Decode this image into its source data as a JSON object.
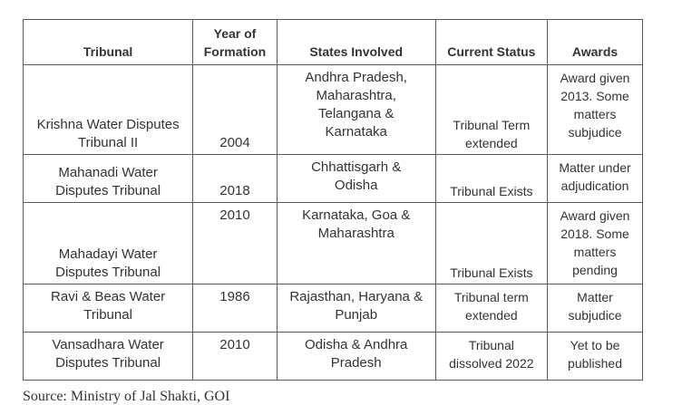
{
  "table": {
    "headers": [
      "Tribunal",
      "Year of Formation",
      "States Involved",
      "Current Status",
      "Awards"
    ],
    "header_lines": {
      "year": [
        "Year of",
        "Formation"
      ]
    },
    "rows": [
      {
        "tribunal": [
          "Krishna Water Disputes",
          "Tribunal II"
        ],
        "year": "2004",
        "states": [
          "Andhra Pradesh,",
          "Maharashtra,",
          "Telangana &",
          "Karnataka"
        ],
        "status": [
          "Tribunal Term",
          "extended"
        ],
        "awards": [
          "Award given",
          "2013. Some",
          "matters",
          "subjudice"
        ]
      },
      {
        "tribunal": [
          "Mahanadi Water",
          "Disputes Tribunal"
        ],
        "year": "2018",
        "states": [
          "Chhattisgarh &",
          "Odisha"
        ],
        "status": [
          "Tribunal Exists"
        ],
        "awards": [
          "Matter under",
          "adjudication"
        ]
      },
      {
        "tribunal": [
          "Mahadayi Water",
          "Disputes Tribunal"
        ],
        "year": "2010",
        "states": [
          "Karnataka, Goa &",
          "Maharashtra"
        ],
        "status": [
          "Tribunal Exists"
        ],
        "awards": [
          "Award given",
          "2018. Some",
          "matters",
          "pending"
        ]
      },
      {
        "tribunal": [
          "Ravi & Beas Water",
          "Tribunal"
        ],
        "year": "1986",
        "states": [
          "Rajasthan, Haryana &",
          "Punjab"
        ],
        "status": [
          "Tribunal term",
          "extended"
        ],
        "awards": [
          "Matter",
          "subjudice"
        ]
      },
      {
        "tribunal": [
          "Vansadhara Water",
          "Disputes Tribunal"
        ],
        "year": "2010",
        "states": [
          "Odisha & Andhra",
          "Pradesh"
        ],
        "status": [
          "Tribunal",
          "dissolved 2022"
        ],
        "awards": [
          "Yet to be",
          "published"
        ]
      }
    ]
  },
  "source": "Source: Ministry of Jal Shakti, GOI"
}
